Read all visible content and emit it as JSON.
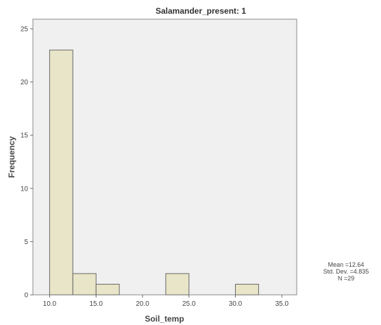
{
  "chart_data": {
    "type": "bar",
    "title": "Salamander_present: 1",
    "xlabel": "Soil_temp",
    "ylabel": "Frequency",
    "bins": [
      {
        "start": 10.0,
        "end": 12.5,
        "value": 23
      },
      {
        "start": 12.5,
        "end": 15.0,
        "value": 2
      },
      {
        "start": 15.0,
        "end": 17.5,
        "value": 1
      },
      {
        "start": 17.5,
        "end": 20.0,
        "value": 0
      },
      {
        "start": 20.0,
        "end": 22.5,
        "value": 0
      },
      {
        "start": 22.5,
        "end": 25.0,
        "value": 2
      },
      {
        "start": 25.0,
        "end": 27.5,
        "value": 0
      },
      {
        "start": 27.5,
        "end": 30.0,
        "value": 0
      },
      {
        "start": 30.0,
        "end": 32.5,
        "value": 1
      }
    ],
    "xticks": [
      "10.0",
      "15.0",
      "20.0",
      "25.0",
      "30.0",
      "35.0"
    ],
    "xtick_values": [
      10,
      15,
      20,
      25,
      30,
      35
    ],
    "yticks": [
      "0",
      "5",
      "10",
      "15",
      "20",
      "25"
    ],
    "ytick_values": [
      0,
      5,
      10,
      15,
      20,
      25
    ],
    "xlim": [
      8.2,
      36.6
    ],
    "ylim": [
      0,
      25.9
    ],
    "grid": false,
    "colors": {
      "bar_fill": "#e8e5c8",
      "bar_stroke": "#666666",
      "plot_bg": "#f0f0f0",
      "frame": "#888888"
    }
  },
  "stats": {
    "mean": "Mean =12.64",
    "std": "Std. Dev. =4.835",
    "n": "N =29"
  }
}
